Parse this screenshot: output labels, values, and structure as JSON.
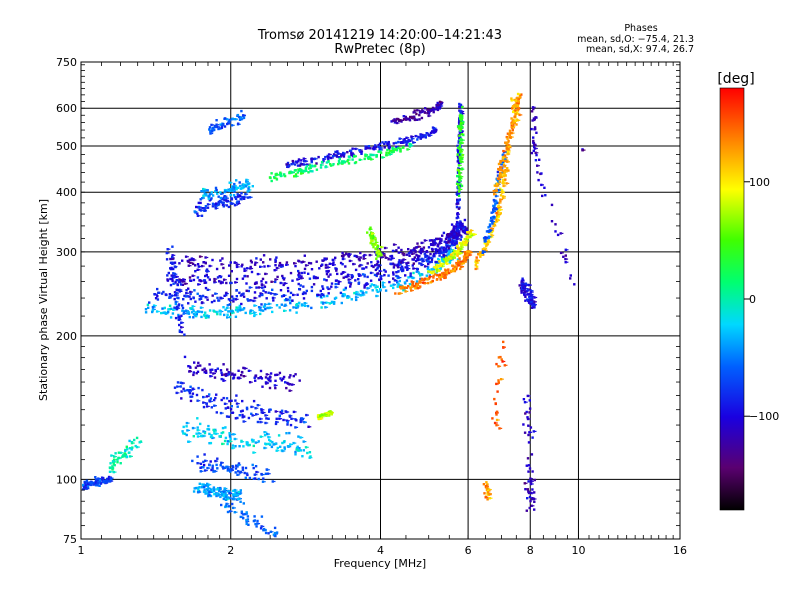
{
  "chart_data": {
    "type": "scatter",
    "title": "Tromsø 20141219 14:20:00–14:21:43",
    "subtitle": "RwPretec (8p)",
    "xlabel": "Frequency [MHz]",
    "ylabel": "Stationary phase Virtual Height [km]",
    "x_scale": "log",
    "y_scale": "log",
    "xlim": [
      1,
      16
    ],
    "ylim": [
      75,
      750
    ],
    "x_ticks": [
      1,
      2,
      4,
      6,
      8,
      10,
      16
    ],
    "x_tick_labels": [
      "1",
      "2",
      "4",
      "6",
      "8",
      "10",
      "16"
    ],
    "y_ticks": [
      75,
      100,
      200,
      300,
      400,
      500,
      600,
      750
    ],
    "y_tick_labels": [
      "75",
      "100",
      "200",
      "300",
      "400",
      "500",
      "600",
      "750"
    ],
    "grid": true,
    "stats": {
      "heading": "Phases",
      "o_line": "mean, sd,O: −75.4, 21.3",
      "x_line": "mean, sd,X: 97.4, 26.7"
    },
    "colorbar": {
      "label": "[deg]",
      "range": [
        -180,
        180
      ],
      "ticks": [
        100,
        0,
        -100
      ],
      "tick_labels": [
        "100",
        "0",
        "−100"
      ]
    },
    "traces": [
      {
        "f": [
          1.0,
          1.05,
          1.1,
          1.15
        ],
        "h": [
          96,
          98,
          99,
          100
        ],
        "phase": -70,
        "noise": 0.03
      },
      {
        "f": [
          1.35,
          1.55,
          1.75,
          2.0,
          2.3,
          2.7,
          3.2,
          3.8,
          4.4,
          5.0,
          5.4,
          5.6
        ],
        "h": [
          228,
          225,
          222,
          224,
          227,
          232,
          238,
          247,
          258,
          272,
          290,
          300
        ],
        "phase": -30,
        "noise": 0.05
      },
      {
        "f": [
          1.4,
          1.6,
          1.8,
          2.1,
          2.5,
          3.0,
          3.6,
          4.2,
          4.8,
          5.3,
          5.6,
          5.8
        ],
        "h": [
          245,
          242,
          240,
          242,
          245,
          250,
          258,
          268,
          282,
          298,
          315,
          330
        ],
        "phase": -85,
        "noise": 0.06
      },
      {
        "f": [
          1.5,
          1.7,
          2.0,
          2.4,
          2.9,
          3.5,
          4.1,
          4.7,
          5.2,
          5.6,
          5.9
        ],
        "h": [
          265,
          262,
          260,
          262,
          266,
          272,
          280,
          292,
          305,
          322,
          340
        ],
        "phase": -105,
        "noise": 0.06
      },
      {
        "f": [
          1.55,
          1.8,
          2.2,
          2.7,
          3.3,
          3.9,
          4.5,
          5.0,
          5.5,
          5.8
        ],
        "h": [
          285,
          282,
          281,
          284,
          288,
          294,
          300,
          310,
          325,
          345
        ],
        "phase": -110,
        "noise": 0.05
      },
      {
        "f": [
          4.3,
          4.7,
          5.1,
          5.4,
          5.7,
          5.9,
          6.0
        ],
        "h": [
          248,
          255,
          262,
          270,
          280,
          290,
          300
        ],
        "phase": 140,
        "noise": 0.03
      },
      {
        "f": [
          5.0,
          5.4,
          5.7,
          5.9,
          6.1
        ],
        "h": [
          270,
          285,
          300,
          315,
          330
        ],
        "phase": 90,
        "noise": 0.03
      },
      {
        "f": [
          5.7,
          5.72,
          5.74,
          5.76,
          5.78,
          5.8
        ],
        "h": [
          320,
          380,
          440,
          500,
          560,
          610
        ],
        "phase": -95,
        "noise": 0.02
      },
      {
        "f": [
          5.75,
          5.78,
          5.8,
          5.83
        ],
        "h": [
          400,
          470,
          540,
          600
        ],
        "phase": 40,
        "noise": 0.03
      },
      {
        "f": [
          6.2,
          6.5,
          6.8,
          7.0,
          7.1,
          7.2
        ],
        "h": [
          280,
          310,
          345,
          390,
          440,
          500
        ],
        "phase": 115,
        "noise": 0.03
      },
      {
        "f": [
          6.4,
          6.7,
          6.9,
          7.1
        ],
        "h": [
          300,
          350,
          420,
          480
        ],
        "phase": -60,
        "noise": 0.03
      },
      {
        "f": [
          6.8,
          7.0,
          7.3,
          7.5,
          7.6
        ],
        "h": [
          400,
          460,
          530,
          590,
          640
        ],
        "phase": 130,
        "noise": 0.03
      },
      {
        "f": [
          2.6,
          2.9,
          3.3,
          3.8,
          4.3,
          4.8,
          5.2
        ],
        "h": [
          455,
          465,
          478,
          492,
          505,
          520,
          540
        ],
        "phase": -95,
        "noise": 0.03
      },
      {
        "f": [
          2.4,
          2.7,
          3.0,
          3.5,
          4.1,
          4.6
        ],
        "h": [
          430,
          440,
          452,
          468,
          482,
          498
        ],
        "phase": 20,
        "noise": 0.03
      },
      {
        "f": [
          4.2,
          4.6,
          5.0,
          5.3
        ],
        "h": [
          560,
          575,
          590,
          610
        ],
        "phase": -120,
        "noise": 0.03
      },
      {
        "f": [
          1.7,
          1.85,
          2.0,
          2.15
        ],
        "h": [
          370,
          378,
          385,
          392
        ],
        "phase": -80,
        "noise": 0.05
      },
      {
        "f": [
          1.75,
          1.9,
          2.05,
          2.2
        ],
        "h": [
          395,
          402,
          410,
          418
        ],
        "phase": -40,
        "noise": 0.05
      },
      {
        "f": [
          1.8,
          1.95,
          2.1
        ],
        "h": [
          540,
          560,
          575
        ],
        "phase": -60,
        "noise": 0.04
      },
      {
        "f": [
          1.55,
          1.75,
          1.95,
          2.2,
          2.5,
          2.8
        ],
        "h": [
          155,
          148,
          142,
          138,
          135,
          132
        ],
        "phase": -85,
        "noise": 0.08
      },
      {
        "f": [
          1.6,
          1.8,
          2.0,
          2.3,
          2.6,
          2.9
        ],
        "h": [
          128,
          125,
          122,
          120,
          118,
          115
        ],
        "phase": -25,
        "noise": 0.08
      },
      {
        "f": [
          1.65,
          1.85,
          2.1,
          2.4,
          2.7
        ],
        "h": [
          172,
          168,
          165,
          162,
          160
        ],
        "phase": -110,
        "noise": 0.06
      },
      {
        "f": [
          1.7,
          1.9,
          2.1,
          2.4
        ],
        "h": [
          108,
          106,
          104,
          102
        ],
        "phase": -70,
        "noise": 0.06
      },
      {
        "f": [
          1.5,
          1.55,
          1.6
        ],
        "h": [
          300,
          250,
          200
        ],
        "phase": -90,
        "noise": 0.05
      },
      {
        "f": [
          1.7,
          1.8,
          1.9,
          2.0,
          2.1
        ],
        "h": [
          96,
          95,
          94,
          93,
          92
        ],
        "phase": -40,
        "noise": 0.05
      },
      {
        "f": [
          3.0,
          3.1,
          3.2
        ],
        "h": [
          135,
          137,
          138
        ],
        "phase": 80,
        "noise": 0.02
      },
      {
        "f": [
          1.9,
          2.2,
          2.5
        ],
        "h": [
          90,
          82,
          76
        ],
        "phase": -60,
        "noise": 0.05
      },
      {
        "f": [
          3.8,
          3.9,
          4.0
        ],
        "h": [
          330,
          310,
          295
        ],
        "phase": 60,
        "noise": 0.04
      },
      {
        "f": [
          6.8,
          7.0
        ],
        "h": [
          130,
          190
        ],
        "phase": 150,
        "noise": 0.05
      },
      {
        "f": [
          7.7,
          7.8,
          8.0,
          8.1
        ],
        "h": [
          260,
          250,
          240,
          230
        ],
        "phase": -100,
        "noise": 0.04
      },
      {
        "f": [
          8.1,
          8.2,
          9.8
        ],
        "h": [
          620,
          480,
          250
        ],
        "phase": -110,
        "noise": 0.04
      },
      {
        "f": [
          10.2
        ],
        "h": [
          490
        ],
        "phase": -120,
        "noise": 0.01
      },
      {
        "f": [
          7.4,
          7.5
        ],
        "h": [
          620,
          560
        ],
        "phase": 120,
        "noise": 0.04
      },
      {
        "f": [
          1.3,
          1.2,
          1.15
        ],
        "h": [
          120,
          112,
          106
        ],
        "phase": 0,
        "noise": 0.06
      },
      {
        "f": [
          7.9,
          8.0,
          8.1
        ],
        "h": [
          150,
          100,
          85
        ],
        "phase": -110,
        "noise": 0.05
      },
      {
        "f": [
          6.5,
          6.6
        ],
        "h": [
          98,
          92
        ],
        "phase": 130,
        "noise": 0.03
      }
    ]
  }
}
